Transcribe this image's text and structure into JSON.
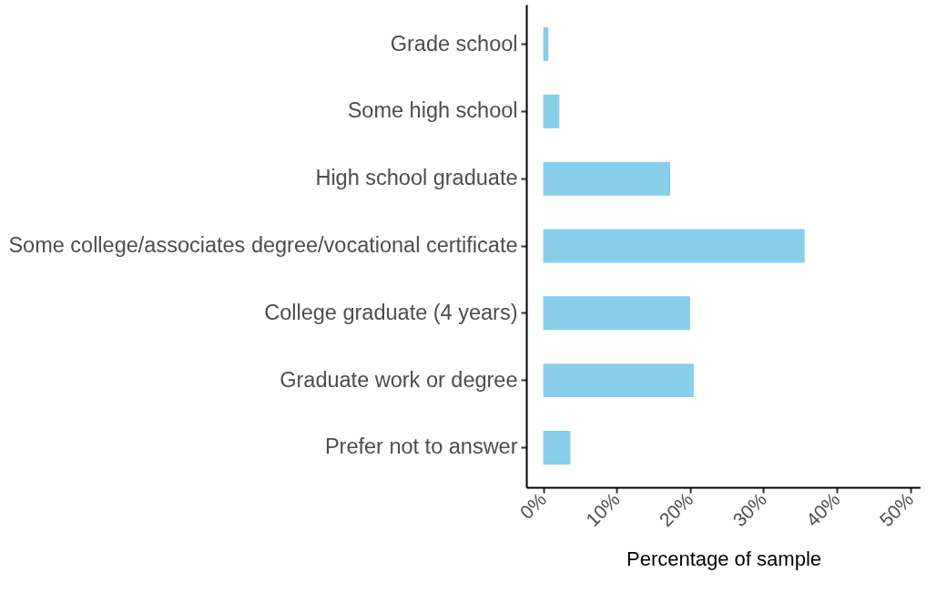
{
  "chart_data": {
    "type": "bar",
    "orientation": "horizontal",
    "xlabel": "Percentage of sample",
    "categories": [
      "Grade school",
      "Some high school",
      "High school graduate",
      "Some college/associates degree/vocational certificate",
      "College graduate (4 years)",
      "Graduate work or degree",
      "Prefer not to answer"
    ],
    "values": [
      0.7,
      2.2,
      17.3,
      35.6,
      20.0,
      20.5,
      3.7
    ],
    "color": "#87ceeb",
    "xlim": [
      -2.3,
      51.4
    ],
    "xticks": [
      {
        "value": 0,
        "label": "0%"
      },
      {
        "value": 10,
        "label": "10%"
      },
      {
        "value": 20,
        "label": "20%"
      },
      {
        "value": 30,
        "label": "30%"
      },
      {
        "value": 40,
        "label": "40%"
      },
      {
        "value": 50,
        "label": "50%"
      }
    ],
    "grid": false
  }
}
